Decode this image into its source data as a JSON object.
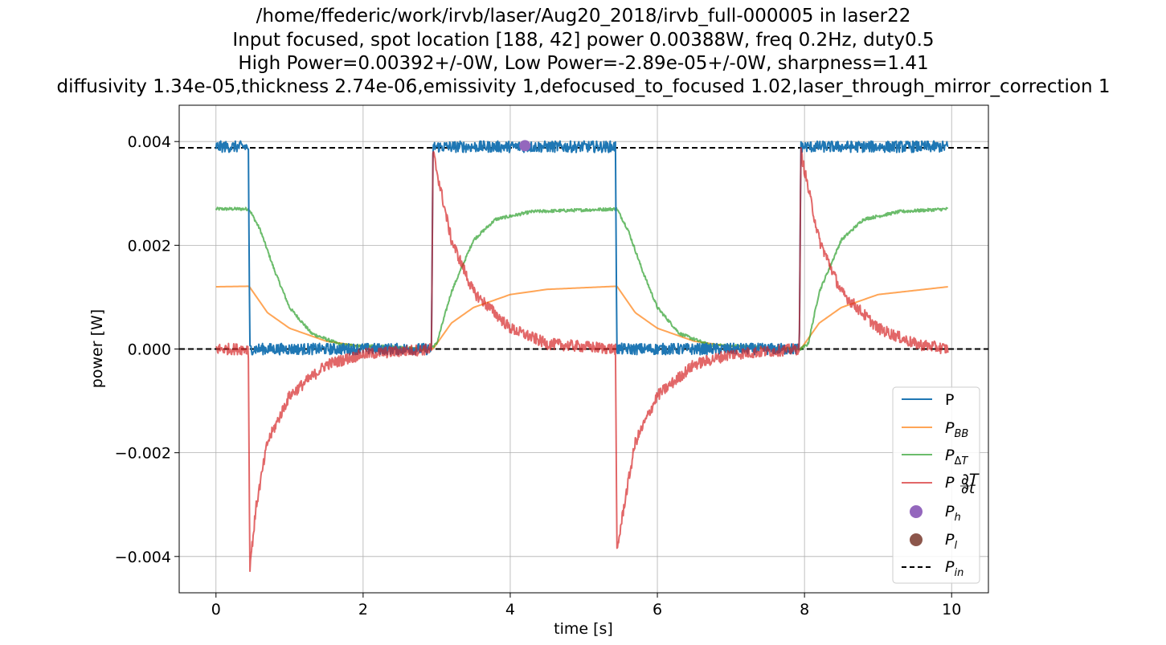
{
  "chart_data": {
    "type": "line",
    "title_lines": [
      "/home/ffederic/work/irvb/laser/Aug20_2018/irvb_full-000005 in laser22",
      "Input focused, spot location [188, 42] power 0.00388W, freq 0.2Hz, duty0.5",
      "High Power=0.00392+/-0W, Low Power=-2.89e-05+/-0W, sharpness=1.41",
      "diffusivity 1.34e-05,thickness 2.74e-06,emissivity 1,defocused_to_focused 1.02,laser_through_mirror_correction 1"
    ],
    "xlabel": "time [s]",
    "ylabel": "power [W]",
    "xlim": [
      -0.5,
      10.5
    ],
    "ylim": [
      -0.0047,
      0.0047
    ],
    "xticks": [
      0,
      2,
      4,
      6,
      8,
      10
    ],
    "xtick_labels": [
      "0",
      "2",
      "4",
      "6",
      "8",
      "10"
    ],
    "yticks": [
      -0.004,
      -0.002,
      0.0,
      0.002,
      0.004
    ],
    "ytick_labels": [
      "−0.004",
      "−0.002",
      "0.000",
      "0.002",
      "0.004"
    ],
    "grid": true,
    "legend_position": "lower-right",
    "colors": {
      "P": "#1f77b4",
      "P_BB": "#ff7f0e",
      "P_dT": "#2ca02c",
      "P_dTdt": "#d62728",
      "P_h": "#9467bd",
      "P_l": "#8c564b",
      "P_in": "#000000"
    },
    "series": [
      {
        "key": "P",
        "legend": "P",
        "kind": "line",
        "alpha": 1.0,
        "keypoints": [
          [
            0.0,
            0.0039
          ],
          [
            0.44,
            0.0039
          ],
          [
            0.46,
            0.0
          ],
          [
            2.93,
            0.0
          ],
          [
            2.95,
            0.0039
          ],
          [
            5.43,
            0.0039
          ],
          [
            5.45,
            0.0
          ],
          [
            7.93,
            0.0
          ],
          [
            7.95,
            0.0039
          ],
          [
            9.95,
            0.0039
          ]
        ],
        "noise": 0.00011
      },
      {
        "key": "P_BB",
        "legend": "P_BB",
        "kind": "line",
        "alpha": 0.7,
        "keypoints": [
          [
            0.0,
            0.0012
          ],
          [
            0.45,
            0.00121
          ],
          [
            0.7,
            0.0007
          ],
          [
            1.0,
            0.0004
          ],
          [
            1.5,
            0.00015
          ],
          [
            2.0,
            5e-05
          ],
          [
            2.9,
            0.0
          ],
          [
            2.95,
            0.0
          ],
          [
            3.2,
            0.0005
          ],
          [
            3.5,
            0.0008
          ],
          [
            4.0,
            0.00105
          ],
          [
            4.5,
            0.00115
          ],
          [
            5.45,
            0.00121
          ],
          [
            5.7,
            0.0007
          ],
          [
            6.0,
            0.0004
          ],
          [
            6.5,
            0.00015
          ],
          [
            7.0,
            5e-05
          ],
          [
            7.95,
            0.0
          ],
          [
            8.2,
            0.0005
          ],
          [
            8.5,
            0.0008
          ],
          [
            9.0,
            0.00105
          ],
          [
            9.95,
            0.0012
          ]
        ],
        "noise": 0.0
      },
      {
        "key": "P_dT",
        "legend": "P_ΔT",
        "kind": "line",
        "alpha": 0.7,
        "keypoints": [
          [
            0.0,
            0.0027
          ],
          [
            0.45,
            0.0027
          ],
          [
            0.6,
            0.0023
          ],
          [
            0.8,
            0.0015
          ],
          [
            1.0,
            0.0008
          ],
          [
            1.3,
            0.0003
          ],
          [
            1.7,
            8e-05
          ],
          [
            2.9,
            0.0
          ],
          [
            3.0,
            0.0001
          ],
          [
            3.2,
            0.0011
          ],
          [
            3.5,
            0.0021
          ],
          [
            3.8,
            0.0025
          ],
          [
            4.3,
            0.00265
          ],
          [
            5.45,
            0.0027
          ],
          [
            5.6,
            0.0023
          ],
          [
            5.8,
            0.0015
          ],
          [
            6.0,
            0.0008
          ],
          [
            6.3,
            0.0003
          ],
          [
            6.7,
            8e-05
          ],
          [
            7.95,
            0.0
          ],
          [
            8.05,
            0.0001
          ],
          [
            8.2,
            0.0011
          ],
          [
            8.5,
            0.0021
          ],
          [
            8.8,
            0.0025
          ],
          [
            9.3,
            0.00265
          ],
          [
            9.95,
            0.0027
          ]
        ],
        "noise": 3e-05
      },
      {
        "key": "P_dTdt",
        "legend": "P_∂T/∂t",
        "kind": "line",
        "alpha": 0.7,
        "keypoints": [
          [
            0.0,
            0.0
          ],
          [
            0.44,
            0.0
          ],
          [
            0.46,
            -0.0042
          ],
          [
            0.55,
            -0.003
          ],
          [
            0.7,
            -0.0018
          ],
          [
            1.0,
            -0.0009
          ],
          [
            1.5,
            -0.0003
          ],
          [
            2.0,
            -0.0001
          ],
          [
            2.93,
            0.0
          ],
          [
            2.95,
            0.0038
          ],
          [
            3.05,
            0.0031
          ],
          [
            3.2,
            0.0021
          ],
          [
            3.5,
            0.0011
          ],
          [
            4.0,
            0.0004
          ],
          [
            4.5,
            0.0001
          ],
          [
            5.43,
            0.0
          ],
          [
            5.45,
            -0.0039
          ],
          [
            5.55,
            -0.003
          ],
          [
            5.7,
            -0.0018
          ],
          [
            6.0,
            -0.0009
          ],
          [
            6.5,
            -0.0003
          ],
          [
            7.0,
            -0.0001
          ],
          [
            7.93,
            0.0
          ],
          [
            7.95,
            0.0038
          ],
          [
            8.05,
            0.0031
          ],
          [
            8.2,
            0.0021
          ],
          [
            8.5,
            0.0011
          ],
          [
            9.0,
            0.0004
          ],
          [
            9.5,
            0.0001
          ],
          [
            9.95,
            0.0
          ]
        ],
        "noise": 0.00011
      },
      {
        "key": "P_h",
        "legend": "P_h",
        "kind": "marker",
        "points": [
          [
            4.2,
            0.00392
          ]
        ]
      },
      {
        "key": "P_l",
        "legend": "P_l",
        "kind": "marker",
        "points": []
      },
      {
        "key": "P_in",
        "legend": "P_in",
        "kind": "hline",
        "values": [
          0.00388,
          0.0
        ]
      }
    ]
  }
}
